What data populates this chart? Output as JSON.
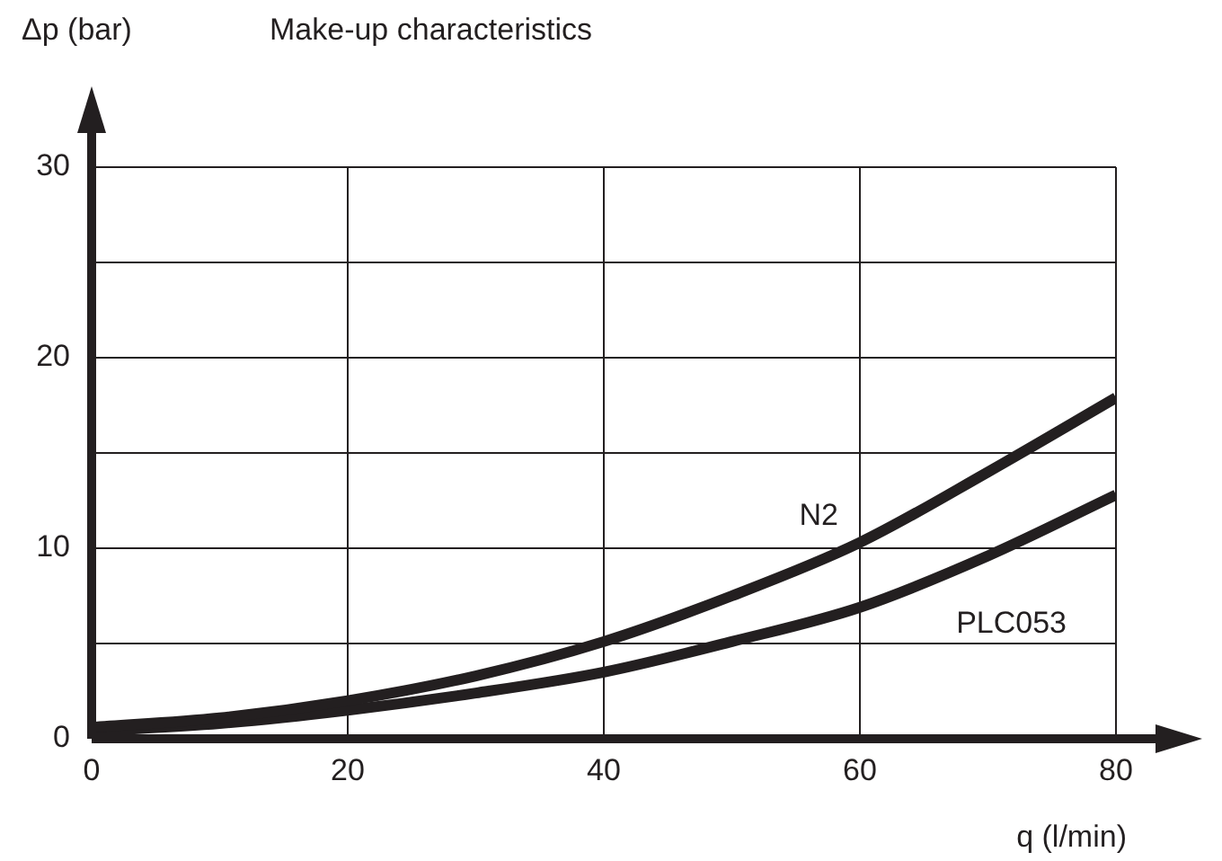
{
  "chart_data": {
    "type": "line",
    "title": "Make-up characteristics",
    "xlabel": "q (l/min)",
    "ylabel": "Δp (bar)",
    "x": [
      0,
      10,
      20,
      30,
      40,
      50,
      60,
      70,
      80
    ],
    "series": [
      {
        "name": "N2",
        "color": "#231f20",
        "values": [
          0.6,
          1.1,
          2.0,
          3.3,
          5.1,
          7.5,
          10.3,
          14.0,
          17.9
        ]
      },
      {
        "name": "PLC053",
        "color": "#231f20",
        "values": [
          0.4,
          0.8,
          1.5,
          2.4,
          3.5,
          5.1,
          6.9,
          9.6,
          12.8
        ]
      }
    ],
    "xlim": [
      0,
      80
    ],
    "xticks": [
      0,
      20,
      40,
      60,
      80
    ],
    "ylim": [
      0,
      30
    ],
    "yticks": [
      0,
      {
        "value": 5,
        "label": null
      },
      10,
      {
        "value": 15,
        "label": null
      },
      20,
      {
        "value": 25,
        "label": null
      },
      30
    ],
    "grid": true,
    "legend": false,
    "marker": "none",
    "line_style": "solid"
  }
}
